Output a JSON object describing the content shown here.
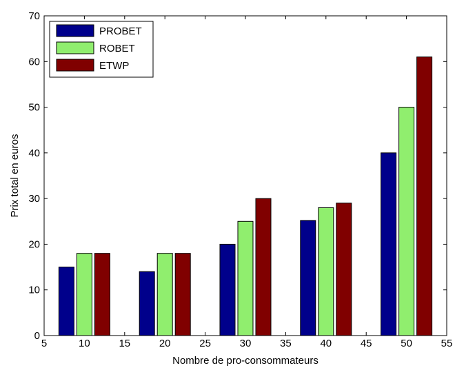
{
  "chart_data": {
    "type": "bar",
    "title": "",
    "xlabel": "Nombre de pro-consommateurs",
    "ylabel": "Prix total en euros",
    "xlim": [
      5,
      55
    ],
    "ylim": [
      0,
      70
    ],
    "x_ticks": [
      "5",
      "10",
      "15",
      "20",
      "25",
      "30",
      "35",
      "40",
      "45",
      "50",
      "55"
    ],
    "y_ticks": [
      "0",
      "10",
      "20",
      "30",
      "40",
      "50",
      "60",
      "70"
    ],
    "categories": [
      10,
      20,
      30,
      40,
      50
    ],
    "series": [
      {
        "name": "PROBET",
        "color": "#00008B",
        "values": [
          15,
          14,
          20,
          25.2,
          40
        ]
      },
      {
        "name": "ROBET",
        "color": "#90EE6E",
        "values": [
          18,
          18,
          25,
          28,
          50
        ]
      },
      {
        "name": "ETWP",
        "color": "#800000",
        "values": [
          18,
          18,
          30,
          29,
          61
        ]
      }
    ],
    "grid": false,
    "legend_position": "top-left"
  }
}
